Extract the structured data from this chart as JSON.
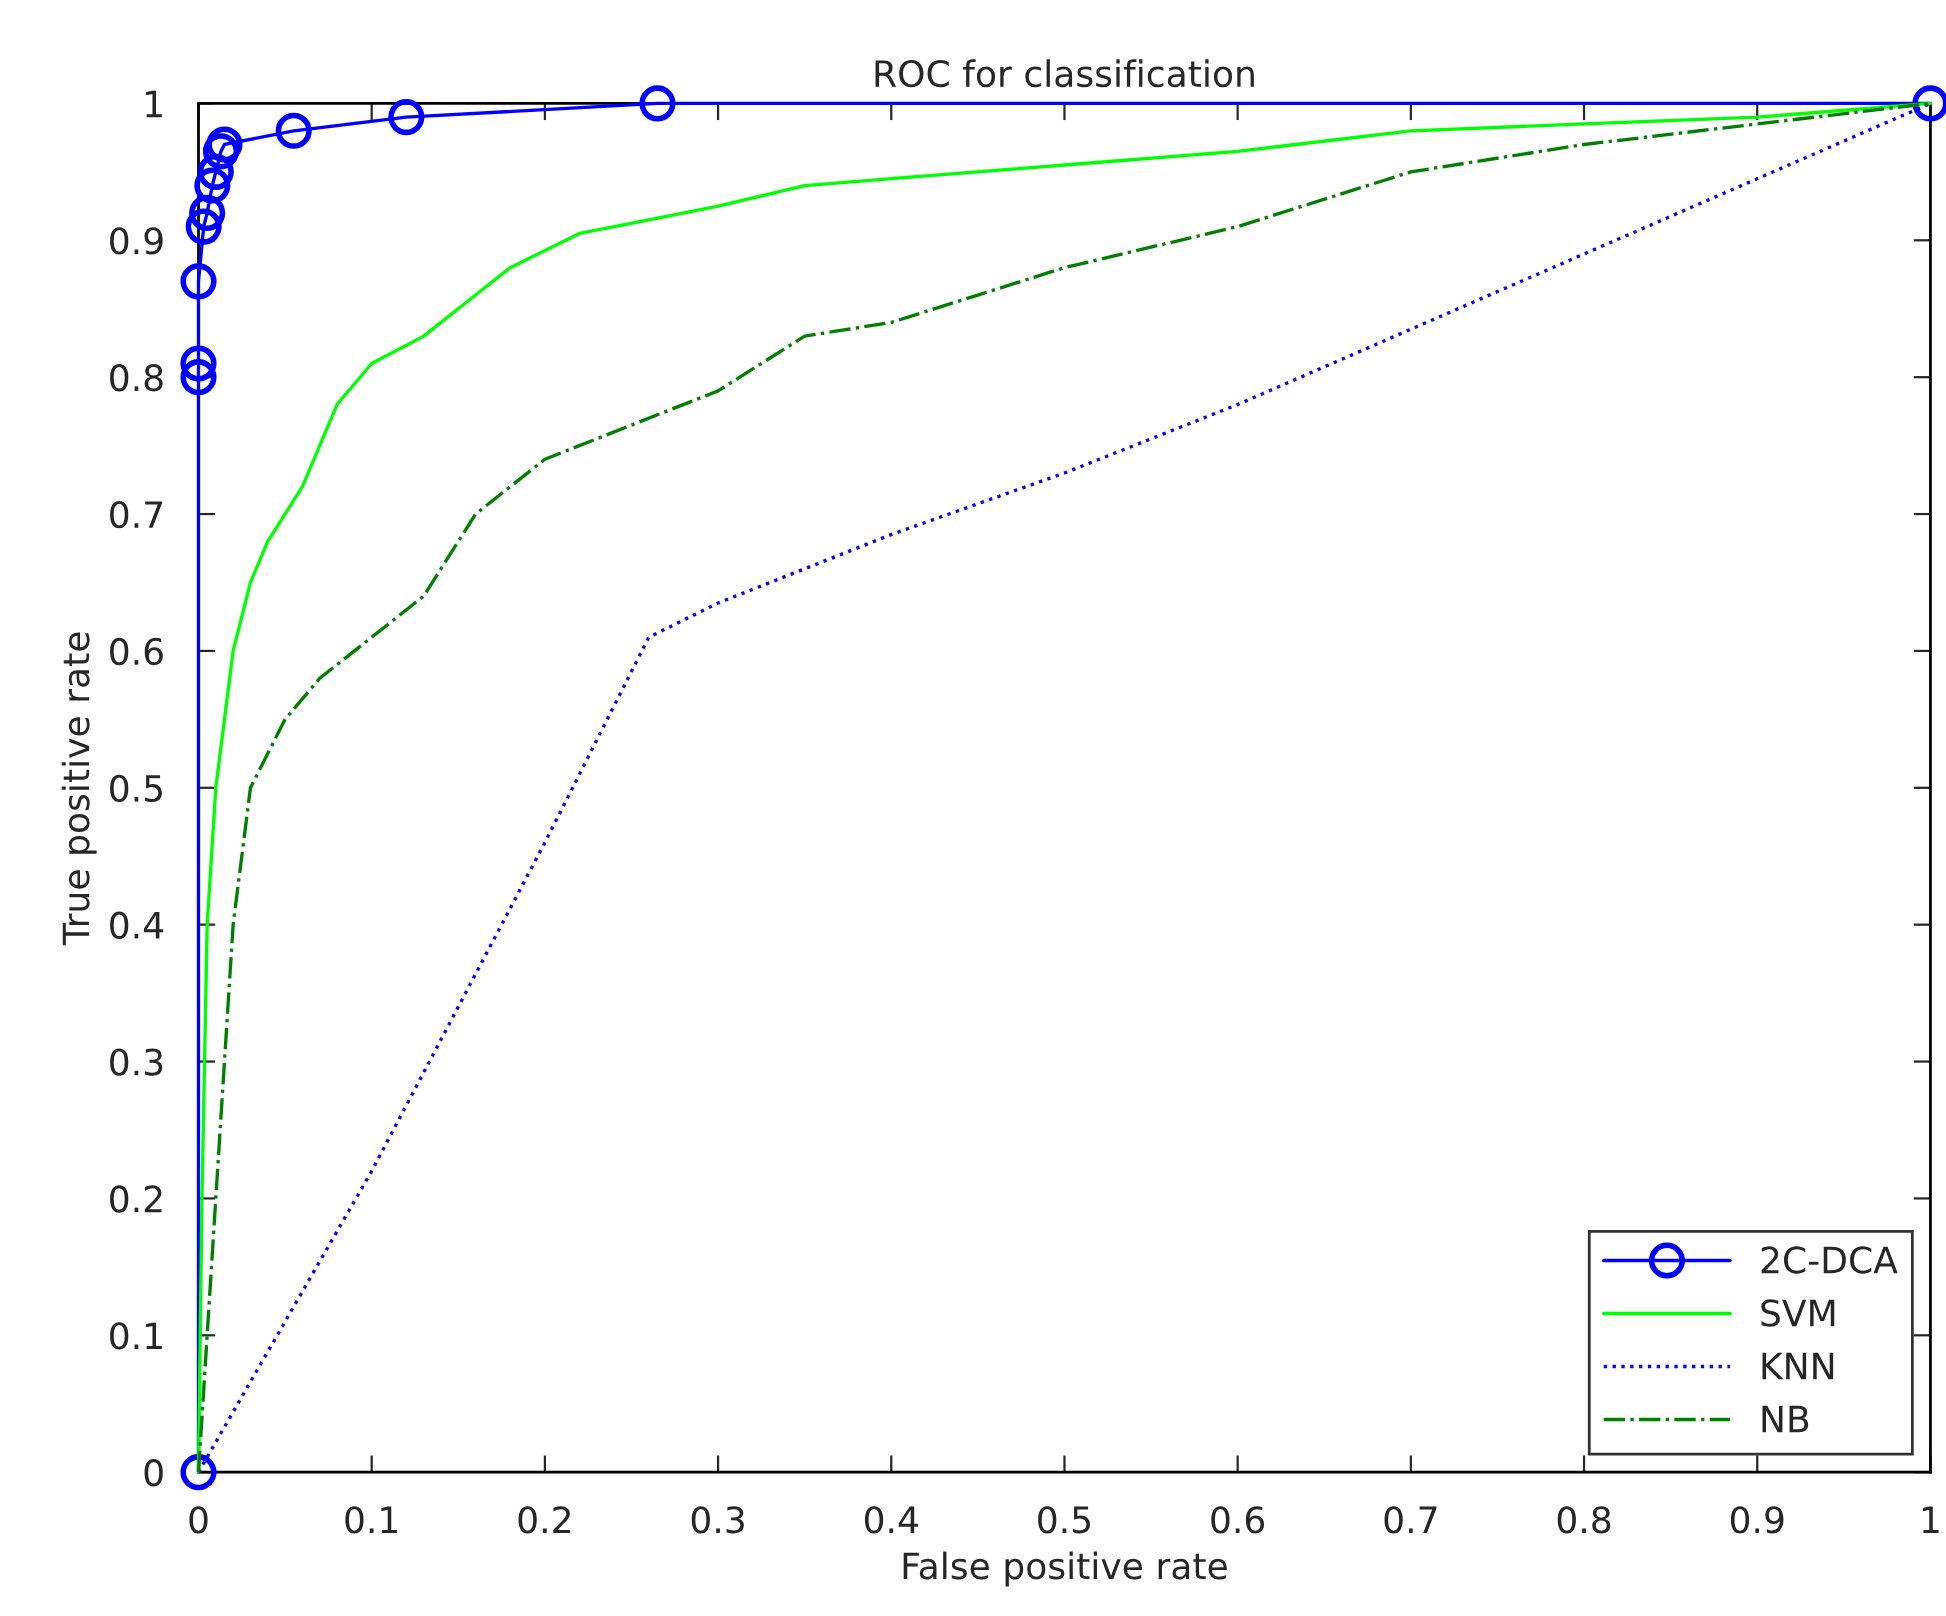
{
  "chart_data": {
    "type": "line",
    "title": "ROC for classification",
    "xlabel": "False positive rate",
    "ylabel": "True positive rate",
    "xlim": [
      0,
      1
    ],
    "ylim": [
      0,
      1
    ],
    "xticks": [
      0,
      0.1,
      0.2,
      0.3,
      0.4,
      0.5,
      0.6,
      0.7,
      0.8,
      0.9,
      1
    ],
    "yticks": [
      0,
      0.1,
      0.2,
      0.3,
      0.4,
      0.5,
      0.6,
      0.7,
      0.8,
      0.9,
      1
    ],
    "grid": false,
    "legend": "bottom right",
    "series": [
      {
        "name": "2C-DCA",
        "color": "#0000ff",
        "marker": "circle",
        "line_style": "solid",
        "x": [
          0,
          0,
          0,
          0,
          0.003,
          0.005,
          0.008,
          0.01,
          0.013,
          0.015,
          0.055,
          0.12,
          0.265,
          1
        ],
        "values": [
          0,
          0.8,
          0.81,
          0.87,
          0.91,
          0.92,
          0.94,
          0.95,
          0.965,
          0.97,
          0.98,
          0.99,
          1,
          1
        ]
      },
      {
        "name": "SVM",
        "color": "#00ff00",
        "marker": "none",
        "line_style": "solid",
        "x": [
          0,
          0.002,
          0.005,
          0.01,
          0.02,
          0.03,
          0.04,
          0.06,
          0.08,
          0.1,
          0.13,
          0.16,
          0.18,
          0.22,
          0.26,
          0.3,
          0.35,
          0.4,
          0.5,
          0.6,
          0.7,
          0.8,
          0.9,
          1
        ],
        "values": [
          0,
          0.2,
          0.4,
          0.5,
          0.6,
          0.65,
          0.68,
          0.72,
          0.78,
          0.81,
          0.83,
          0.86,
          0.88,
          0.905,
          0.915,
          0.925,
          0.94,
          0.945,
          0.955,
          0.965,
          0.98,
          0.985,
          0.99,
          1
        ]
      },
      {
        "name": "KNN",
        "color": "#0000ff",
        "marker": "none",
        "line_style": "dotted",
        "x": [
          0,
          0.1,
          0.2,
          0.26,
          0.3,
          0.4,
          0.5,
          0.6,
          0.7,
          0.8,
          0.9,
          1
        ],
        "values": [
          0,
          0.22,
          0.46,
          0.61,
          0.635,
          0.685,
          0.73,
          0.78,
          0.835,
          0.89,
          0.945,
          1
        ]
      },
      {
        "name": "NB",
        "color": "#008000",
        "marker": "none",
        "line_style": "dashdot",
        "x": [
          0,
          0.005,
          0.01,
          0.015,
          0.02,
          0.03,
          0.05,
          0.07,
          0.1,
          0.13,
          0.16,
          0.2,
          0.25,
          0.3,
          0.35,
          0.4,
          0.45,
          0.5,
          0.6,
          0.7,
          0.8,
          0.9,
          1
        ],
        "values": [
          0,
          0.1,
          0.2,
          0.3,
          0.4,
          0.5,
          0.55,
          0.58,
          0.61,
          0.64,
          0.7,
          0.74,
          0.765,
          0.79,
          0.83,
          0.84,
          0.86,
          0.88,
          0.91,
          0.95,
          0.97,
          0.985,
          1
        ]
      }
    ]
  }
}
